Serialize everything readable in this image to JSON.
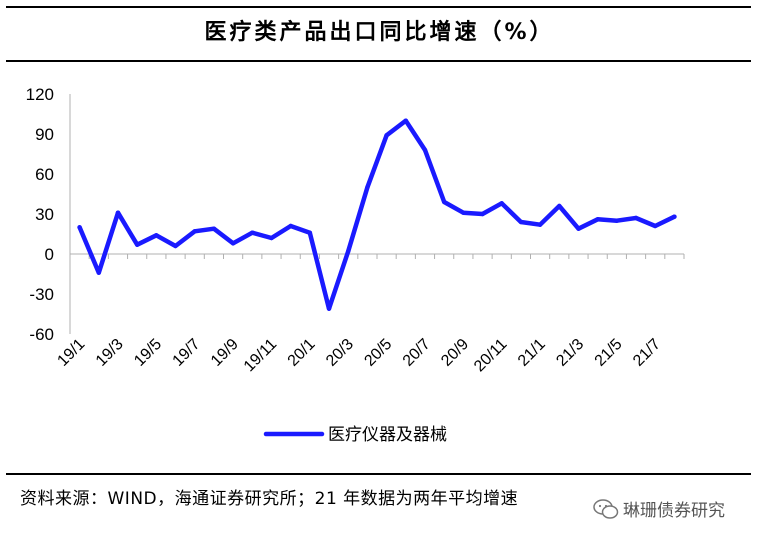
{
  "header": {
    "title": "医疗类产品出口同比增速（%）"
  },
  "footer": {
    "source": "资料来源：WIND，海通证券研究所；21 年数据为两年平均增速",
    "watermark": "琳珊债券研究"
  },
  "chart_data": {
    "type": "line",
    "title": "医疗类产品出口同比增速（%）",
    "xlabel": "",
    "ylabel": "",
    "ylim": [
      -60,
      120
    ],
    "yticks": [
      120,
      90,
      60,
      30,
      0,
      -30,
      -60
    ],
    "grid": false,
    "legend_position": "bottom-center",
    "line_color": "#1a1aff",
    "x": [
      "19/1",
      "19/2",
      "19/3",
      "19/4",
      "19/5",
      "19/6",
      "19/7",
      "19/8",
      "19/9",
      "19/10",
      "19/11",
      "19/12",
      "20/1",
      "20/2",
      "20/3",
      "20/4",
      "20/5",
      "20/6",
      "20/7",
      "20/8",
      "20/9",
      "20/10",
      "20/11",
      "20/12",
      "21/1",
      "21/2",
      "21/3",
      "21/4",
      "21/5",
      "21/6",
      "21/7",
      "21/8"
    ],
    "xtick_labels": [
      "19/1",
      "19/3",
      "19/5",
      "19/7",
      "19/9",
      "19/11",
      "20/1",
      "20/3",
      "20/5",
      "20/7",
      "20/9",
      "20/11",
      "21/1",
      "21/3",
      "21/5",
      "21/7"
    ],
    "series": [
      {
        "name": "医疗仪器及器械",
        "values": [
          20,
          -14,
          31,
          7,
          14,
          6,
          17,
          19,
          8,
          16,
          12,
          21,
          16,
          -41,
          2,
          50,
          89,
          100,
          78,
          39,
          31,
          30,
          38,
          24,
          22,
          36,
          19,
          26,
          25,
          27,
          21,
          28
        ]
      }
    ]
  }
}
